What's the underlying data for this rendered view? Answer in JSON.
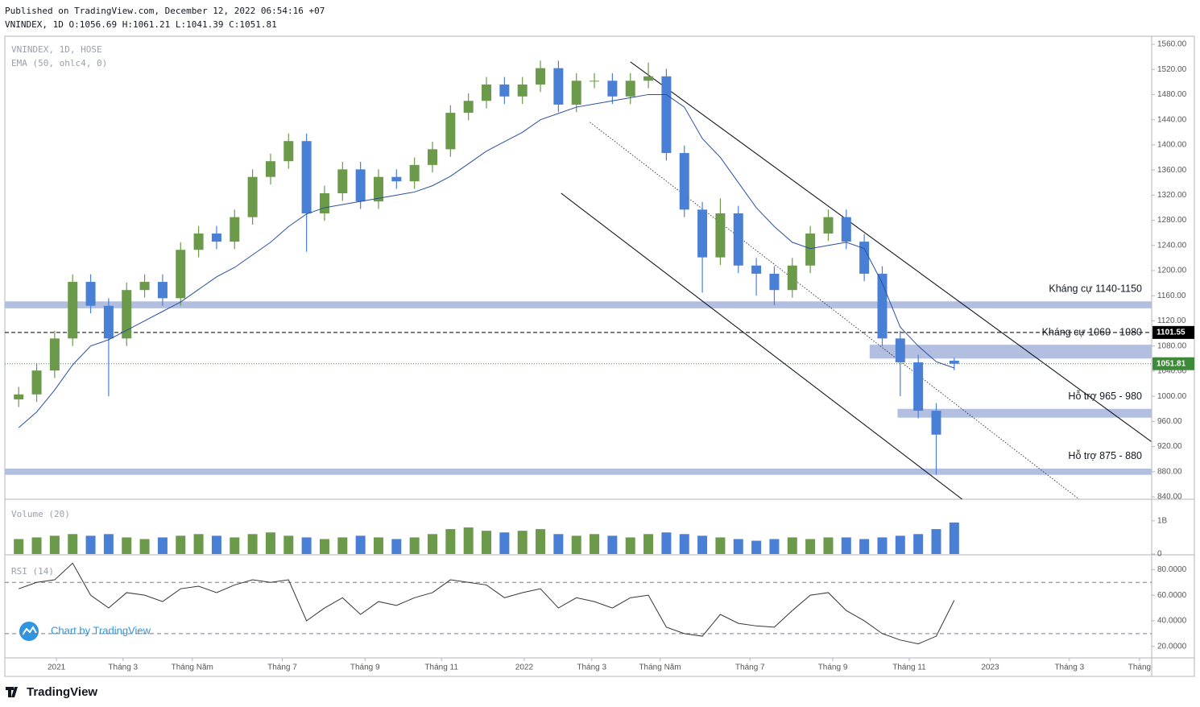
{
  "header": {
    "published": "Published on TradingView.com, December 12, 2022 06:54:16 +07",
    "ohlc": "VNINDEX, 1D O:1056.69 H:1061.21 L:1041.39 C:1051.81"
  },
  "footer": {
    "brand": "TradingView",
    "watermark": "Chart by TradingView"
  },
  "chart_data": {
    "type": "candlestick",
    "symbol_legend": "VNINDEX, 1D, HOSE",
    "x": [
      1,
      3,
      5,
      7,
      9,
      11,
      13,
      15,
      17,
      19,
      21,
      23,
      25,
      27,
      29,
      31,
      33,
      35,
      37,
      39,
      41,
      43,
      45,
      47,
      49,
      51,
      53,
      55,
      57,
      59,
      61,
      63,
      65,
      67,
      69,
      71,
      73,
      75,
      77,
      79,
      81,
      83,
      85,
      87,
      89,
      91,
      93,
      95,
      97,
      99,
      101,
      103,
      105
    ],
    "open": [
      995,
      1003,
      1041,
      1092,
      1182,
      1144,
      1092,
      1169,
      1182,
      1156,
      1233,
      1259,
      1246,
      1285,
      1349,
      1374,
      1406,
      1291,
      1323,
      1361,
      1310,
      1349,
      1342,
      1368,
      1393,
      1451,
      1470,
      1496,
      1477,
      1496,
      1522,
      1464,
      1502,
      1502,
      1477,
      1502,
      1509,
      1387,
      1297,
      1221,
      1291,
      1208,
      1195,
      1169,
      1208,
      1259,
      1285,
      1246,
      1195,
      1092,
      1054,
      977,
      1056.69
    ],
    "high": [
      1015,
      1053,
      1104,
      1194,
      1194,
      1156,
      1181,
      1194,
      1194,
      1245,
      1271,
      1271,
      1297,
      1361,
      1386,
      1418,
      1418,
      1335,
      1373,
      1373,
      1361,
      1361,
      1380,
      1405,
      1463,
      1482,
      1508,
      1508,
      1508,
      1534,
      1534,
      1514,
      1514,
      1514,
      1514,
      1531,
      1521,
      1399,
      1309,
      1315,
      1303,
      1220,
      1207,
      1220,
      1271,
      1297,
      1297,
      1258,
      1207,
      1104,
      1066,
      989,
      1061.21
    ],
    "low": [
      983,
      991,
      1029,
      1080,
      1132,
      1000,
      1080,
      1157,
      1144,
      1144,
      1221,
      1234,
      1234,
      1273,
      1337,
      1362,
      1230,
      1279,
      1311,
      1298,
      1298,
      1330,
      1330,
      1356,
      1381,
      1439,
      1458,
      1465,
      1465,
      1484,
      1452,
      1452,
      1490,
      1465,
      1465,
      1490,
      1375,
      1285,
      1165,
      1209,
      1196,
      1160,
      1145,
      1157,
      1196,
      1247,
      1234,
      1183,
      1080,
      1000,
      965,
      875,
      1041.39
    ],
    "close": [
      1003,
      1041,
      1092,
      1182,
      1144,
      1092,
      1169,
      1182,
      1156,
      1233,
      1259,
      1246,
      1285,
      1349,
      1374,
      1406,
      1291,
      1323,
      1361,
      1310,
      1349,
      1342,
      1368,
      1393,
      1451,
      1470,
      1496,
      1477,
      1496,
      1522,
      1464,
      1502,
      1502,
      1477,
      1502,
      1509,
      1387,
      1297,
      1221,
      1291,
      1208,
      1195,
      1169,
      1208,
      1259,
      1285,
      1246,
      1195,
      1092,
      1054,
      977,
      939,
      1051.81
    ],
    "up_color": "#6a9a4a",
    "down_color": "#4a7fd6",
    "ema": {
      "name": "EMA (50, ohlc4, 0)",
      "color": "#2a4f9f",
      "values": [
        950,
        975,
        1010,
        1050,
        1080,
        1090,
        1105,
        1120,
        1135,
        1150,
        1170,
        1190,
        1205,
        1225,
        1245,
        1270,
        1290,
        1300,
        1305,
        1310,
        1315,
        1320,
        1325,
        1335,
        1350,
        1370,
        1390,
        1405,
        1420,
        1440,
        1450,
        1460,
        1465,
        1470,
        1475,
        1480,
        1480,
        1460,
        1410,
        1380,
        1340,
        1300,
        1270,
        1245,
        1235,
        1240,
        1245,
        1235,
        1180,
        1110,
        1080,
        1055,
        1045
      ]
    },
    "xlim": [
      -0.54,
      126.95
    ],
    "xticks": [
      {
        "value": 5.2,
        "label": "2021"
      },
      {
        "value": 12.6,
        "label": "Tháng 3"
      },
      {
        "value": 20.3,
        "label": "Tháng Năm"
      },
      {
        "value": 30.3,
        "label": "Tháng 7"
      },
      {
        "value": 39.5,
        "label": "Tháng 9"
      },
      {
        "value": 48.0,
        "label": "Tháng 11"
      },
      {
        "value": 57.2,
        "label": "2022"
      },
      {
        "value": 64.7,
        "label": "Tháng 3"
      },
      {
        "value": 72.3,
        "label": "Tháng Năm"
      },
      {
        "value": 82.3,
        "label": "Tháng 7"
      },
      {
        "value": 91.5,
        "label": "Tháng 9"
      },
      {
        "value": 100.0,
        "label": "Tháng 11"
      },
      {
        "value": 109.0,
        "label": "2023"
      },
      {
        "value": 117.8,
        "label": "Tháng 3"
      },
      {
        "value": 125.6,
        "label": "Tháng"
      }
    ],
    "ylim": [
      836.2,
      1572.8
    ],
    "yticks": [
      {
        "value": 840,
        "label": "840.00"
      },
      {
        "value": 880,
        "label": "880.00"
      },
      {
        "value": 920,
        "label": "920.00"
      },
      {
        "value": 960,
        "label": "960.00"
      },
      {
        "value": 1000,
        "label": "1000.00"
      },
      {
        "value": 1040,
        "label": "1040.00"
      },
      {
        "value": 1080,
        "label": "1080.00"
      },
      {
        "value": 1120,
        "label": "1120.00"
      },
      {
        "value": 1160,
        "label": "1160.00"
      },
      {
        "value": 1200,
        "label": "1200.00"
      },
      {
        "value": 1240,
        "label": "1240.00"
      },
      {
        "value": 1280,
        "label": "1280.00"
      },
      {
        "value": 1320,
        "label": "1320.00"
      },
      {
        "value": 1360,
        "label": "1360.00"
      },
      {
        "value": 1400,
        "label": "1400.00"
      },
      {
        "value": 1440,
        "label": "1440.00"
      },
      {
        "value": 1480,
        "label": "1480.00"
      },
      {
        "value": 1520,
        "label": "1520.00"
      },
      {
        "value": 1560,
        "label": "1560.00"
      }
    ],
    "reference_line": {
      "value": 1101.55,
      "color": "#000000"
    },
    "last_price_line": {
      "value": 1051.81,
      "color": "#3f8a3a"
    },
    "zones": [
      {
        "label": "Kháng cự 1140-1150",
        "low": 1140,
        "high": 1151,
        "from": -0.54
      },
      {
        "label": "Kháng cự 1060 - 1080",
        "low": 1060,
        "high": 1082,
        "from": 95.6
      },
      {
        "label": "Hỗ trợ 965 - 980",
        "low": 966,
        "high": 980,
        "from": 98.7
      },
      {
        "label": "Hỗ trợ 875 - 880",
        "low": 875,
        "high": 885,
        "from": -0.54
      }
    ],
    "zone_color": "#b3bfe0",
    "trendlines": [
      {
        "x": [
          69.0,
          126.9
        ],
        "y": [
          1532,
          928
        ],
        "style": "solid"
      },
      {
        "x": [
          61.3,
          105.9
        ],
        "y": [
          1323,
          836
        ],
        "style": "solid"
      },
      {
        "x": [
          64.5,
          118.9
        ],
        "y": [
          1436,
          836
        ],
        "style": "dotted"
      }
    ],
    "volume": {
      "title": "Volume (20)",
      "values": [
        450000000,
        500000000,
        550000000,
        600000000,
        550000000,
        600000000,
        500000000,
        450000000,
        500000000,
        550000000,
        600000000,
        550000000,
        500000000,
        600000000,
        650000000,
        550000000,
        500000000,
        450000000,
        500000000,
        550000000,
        500000000,
        450000000,
        500000000,
        600000000,
        750000000,
        800000000,
        700000000,
        650000000,
        700000000,
        750000000,
        600000000,
        550000000,
        600000000,
        550000000,
        500000000,
        600000000,
        650000000,
        600000000,
        550000000,
        500000000,
        450000000,
        400000000,
        450000000,
        500000000,
        450000000,
        500000000,
        500000000,
        450000000,
        500000000,
        550000000,
        600000000,
        750000000,
        950000000
      ],
      "ylim": [
        0,
        1650000000
      ],
      "yticks": [
        0,
        {
          "value": 1000000000,
          "label": "1B"
        }
      ]
    },
    "rsi": {
      "title": "RSI (14)",
      "color": "#333333",
      "values": [
        65,
        70,
        72,
        85,
        60,
        50,
        62,
        60,
        55,
        65,
        67,
        62,
        68,
        72,
        70,
        72,
        40,
        50,
        58,
        45,
        55,
        52,
        58,
        62,
        72,
        70,
        68,
        58,
        62,
        65,
        50,
        58,
        55,
        50,
        58,
        60,
        35,
        30,
        28,
        45,
        38,
        36,
        35,
        48,
        60,
        62,
        48,
        40,
        30,
        25,
        22,
        28,
        56
      ],
      "ylim": [
        12.3,
        90.9
      ],
      "yticks": [
        {
          "value": 20,
          "label": "20.0000"
        },
        {
          "value": 40,
          "label": "40.0000"
        },
        {
          "value": 60,
          "label": "60.0000"
        },
        {
          "value": 80,
          "label": "80.0000"
        }
      ],
      "bands": [
        30,
        70
      ]
    }
  }
}
